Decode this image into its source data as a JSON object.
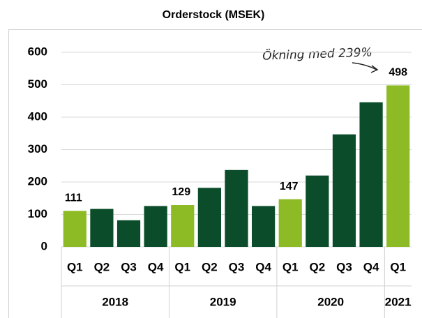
{
  "chart_data": {
    "type": "bar",
    "title": "Orderstock (MSEK)",
    "groups": [
      {
        "name": "2018",
        "categories": [
          "Q1",
          "Q2",
          "Q3",
          "Q4"
        ]
      },
      {
        "name": "2019",
        "categories": [
          "Q1",
          "Q2",
          "Q3",
          "Q4"
        ]
      },
      {
        "name": "2020",
        "categories": [
          "Q1",
          "Q2",
          "Q3",
          "Q4"
        ]
      },
      {
        "name": "2021",
        "categories": [
          "Q1"
        ]
      }
    ],
    "values": [
      111,
      117,
      82,
      126,
      129,
      182,
      237,
      126,
      147,
      220,
      347,
      446,
      498
    ],
    "colors": [
      "#8dbb25",
      "#0b4d2a",
      "#0b4d2a",
      "#0b4d2a",
      "#8dbb25",
      "#0b4d2a",
      "#0b4d2a",
      "#0b4d2a",
      "#8dbb25",
      "#0b4d2a",
      "#0b4d2a",
      "#0b4d2a",
      "#8dbb25"
    ],
    "ylim": [
      0,
      600
    ],
    "yticks": [
      0,
      100,
      200,
      300,
      400,
      500,
      600
    ],
    "grid": true,
    "annotation": "Ökning med 239%"
  }
}
